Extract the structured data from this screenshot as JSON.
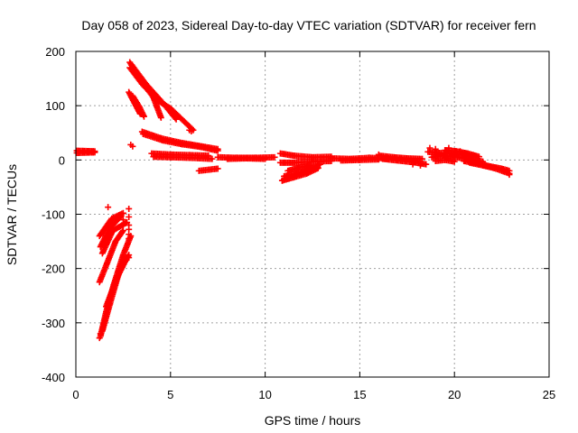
{
  "chart_data": {
    "type": "scatter",
    "title": "Day 058 of 2023, Sidereal Day-to-day VTEC variation (SDTVAR) for receiver fern",
    "xlabel": "GPS time / hours",
    "ylabel": "SDTVAR / TECUs",
    "xlim": [
      0,
      25
    ],
    "ylim": [
      -400,
      200
    ],
    "xticks": [
      0,
      5,
      10,
      15,
      20,
      25
    ],
    "yticks": [
      -400,
      -300,
      -200,
      -100,
      0,
      100,
      200
    ],
    "xtick_labels": [
      "0",
      "5",
      "10",
      "15",
      "20",
      "25"
    ],
    "ytick_labels": [
      "-400",
      "-300",
      "-200",
      "-100",
      "0",
      "100",
      "200"
    ],
    "grid": true,
    "marker": "+",
    "color": "#ff0000",
    "series": [
      {
        "name": "SDTVAR",
        "segments": [
          [
            [
              0.05,
              17
            ],
            [
              1.0,
              16
            ]
          ],
          [
            [
              0.05,
              13
            ],
            [
              1.0,
              14
            ]
          ],
          [
            [
              1.25,
              -140
            ],
            [
              1.9,
              -108
            ],
            [
              2.5,
              -98
            ]
          ],
          [
            [
              1.3,
              -160
            ],
            [
              1.8,
              -125
            ],
            [
              2.4,
              -103
            ]
          ],
          [
            [
              1.4,
              -172
            ],
            [
              1.95,
              -130
            ],
            [
              2.7,
              -115
            ]
          ],
          [
            [
              1.25,
              -225
            ],
            [
              1.65,
              -190
            ],
            [
              2.1,
              -150
            ],
            [
              2.5,
              -130
            ]
          ],
          [
            [
              1.3,
              -325
            ],
            [
              1.6,
              -280
            ],
            [
              2.0,
              -230
            ],
            [
              2.5,
              -175
            ],
            [
              2.9,
              -140
            ]
          ],
          [
            [
              1.4,
              -315
            ],
            [
              1.8,
              -265
            ],
            [
              2.3,
              -205
            ],
            [
              2.8,
              -175
            ]
          ],
          [
            [
              1.6,
              -270
            ],
            [
              2.2,
              -215
            ],
            [
              2.7,
              -180
            ]
          ],
          [
            [
              2.85,
              180
            ],
            [
              3.4,
              150
            ],
            [
              4.1,
              115
            ],
            [
              4.5,
              78
            ]
          ],
          [
            [
              2.85,
              170
            ],
            [
              3.5,
              140
            ],
            [
              4.3,
              110
            ],
            [
              5.0,
              95
            ],
            [
              6.2,
              55
            ]
          ],
          [
            [
              2.95,
              175
            ],
            [
              3.7,
              140
            ],
            [
              4.6,
              105
            ],
            [
              5.3,
              75
            ]
          ],
          [
            [
              2.8,
              125
            ],
            [
              3.1,
              105
            ],
            [
              3.4,
              85
            ]
          ],
          [
            [
              3.0,
              118
            ],
            [
              3.35,
              98
            ],
            [
              3.6,
              80
            ]
          ],
          [
            [
              3.5,
              52
            ],
            [
              4.5,
              40
            ],
            [
              5.5,
              32
            ],
            [
              6.5,
              26
            ],
            [
              7.5,
              20
            ]
          ],
          [
            [
              3.55,
              48
            ],
            [
              4.6,
              36
            ],
            [
              5.6,
              29
            ],
            [
              6.6,
              24
            ],
            [
              7.5,
              17
            ]
          ],
          [
            [
              4.0,
              12
            ],
            [
              5.0,
              10
            ],
            [
              6.0,
              9
            ],
            [
              7.0,
              8
            ]
          ],
          [
            [
              4.1,
              6
            ],
            [
              5.0,
              5
            ],
            [
              6.0,
              4
            ],
            [
              7.2,
              2
            ]
          ],
          [
            [
              6.5,
              -20
            ],
            [
              7.5,
              -16
            ]
          ],
          [
            [
              7.5,
              5
            ],
            [
              8.5,
              4
            ],
            [
              9.5,
              4
            ],
            [
              10.5,
              5
            ]
          ],
          [
            [
              8.0,
              2
            ],
            [
              9.0,
              3
            ],
            [
              10.0,
              2
            ]
          ],
          [
            [
              10.8,
              12
            ],
            [
              11.5,
              8
            ],
            [
              12.5,
              5
            ],
            [
              13.5,
              6
            ]
          ],
          [
            [
              10.8,
              -5
            ],
            [
              11.5,
              -5
            ],
            [
              12.5,
              -3
            ],
            [
              13.5,
              -2
            ]
          ],
          [
            [
              10.9,
              -38
            ],
            [
              11.5,
              -32
            ],
            [
              12.2,
              -25
            ],
            [
              12.8,
              -15
            ]
          ],
          [
            [
              11.0,
              -30
            ],
            [
              11.6,
              -25
            ],
            [
              12.3,
              -18
            ],
            [
              12.9,
              -8
            ]
          ],
          [
            [
              11.2,
              -20
            ],
            [
              11.8,
              -14
            ],
            [
              12.4,
              -10
            ]
          ],
          [
            [
              13.5,
              3
            ],
            [
              14.5,
              2
            ],
            [
              15.5,
              4
            ],
            [
              16.5,
              3
            ]
          ],
          [
            [
              14.0,
              -1
            ],
            [
              15.0,
              0
            ],
            [
              16.0,
              1
            ]
          ],
          [
            [
              16.0,
              8
            ],
            [
              16.8,
              5
            ],
            [
              17.5,
              3
            ],
            [
              18.3,
              2
            ]
          ],
          [
            [
              16.2,
              2
            ],
            [
              17.0,
              -1
            ],
            [
              17.8,
              -4
            ],
            [
              18.5,
              -8
            ]
          ],
          [
            [
              18.6,
              15
            ],
            [
              19.2,
              13
            ],
            [
              19.8,
              12
            ],
            [
              20.4,
              10
            ],
            [
              21.0,
              7
            ]
          ],
          [
            [
              18.8,
              5
            ],
            [
              19.4,
              8
            ],
            [
              20.0,
              5
            ],
            [
              20.8,
              2
            ],
            [
              21.5,
              -3
            ]
          ],
          [
            [
              19.0,
              -2
            ],
            [
              19.5,
              0
            ],
            [
              20.0,
              -3
            ]
          ],
          [
            [
              19.5,
              18
            ],
            [
              20.1,
              16
            ],
            [
              20.7,
              12
            ],
            [
              21.3,
              6
            ]
          ],
          [
            [
              20.5,
              -2
            ],
            [
              21.2,
              -6
            ],
            [
              21.9,
              -12
            ],
            [
              22.5,
              -16
            ],
            [
              22.9,
              -20
            ]
          ],
          [
            [
              20.8,
              -5
            ],
            [
              21.5,
              -10
            ],
            [
              22.1,
              -15
            ],
            [
              22.9,
              -25
            ]
          ]
        ],
        "points": [
          [
            1.7,
            -87
          ],
          [
            2.0,
            -130
          ],
          [
            2.5,
            -110
          ],
          [
            2.8,
            -90
          ],
          [
            2.8,
            -105
          ],
          [
            2.8,
            -120
          ],
          [
            2.8,
            -128
          ],
          [
            2.8,
            -137
          ],
          [
            2.8,
            -145
          ],
          [
            2.5,
            -180
          ],
          [
            2.8,
            -180
          ],
          [
            1.25,
            -328
          ],
          [
            1.3,
            -320
          ],
          [
            2.9,
            28
          ],
          [
            3.0,
            25
          ],
          [
            6.0,
            55
          ],
          [
            6.1,
            53
          ],
          [
            10.9,
            -38
          ],
          [
            11.0,
            -35
          ],
          [
            16.0,
            10
          ],
          [
            17.8,
            -8
          ],
          [
            18.2,
            -10
          ],
          [
            18.7,
            22
          ],
          [
            19.0,
            20
          ],
          [
            19.7,
            22
          ],
          [
            20.3,
            16
          ],
          [
            22.6,
            -20
          ],
          [
            22.9,
            -27
          ]
        ]
      }
    ]
  }
}
